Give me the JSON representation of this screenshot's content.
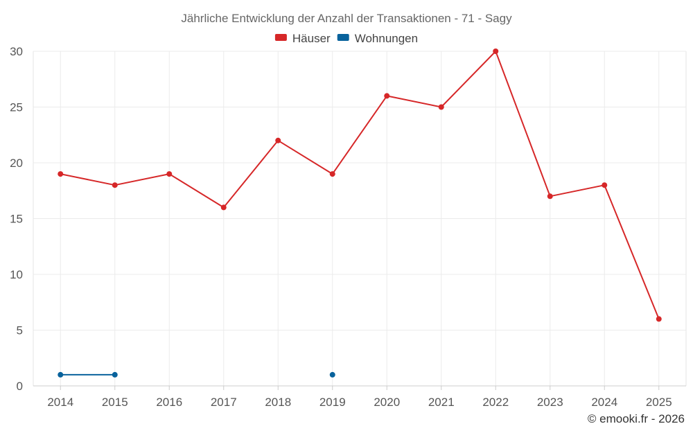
{
  "chart_data": {
    "type": "line",
    "title": "Jährliche Entwicklung der Anzahl der Transaktionen - 71 - Sagy",
    "categories": [
      "2014",
      "2015",
      "2016",
      "2017",
      "2018",
      "2019",
      "2020",
      "2021",
      "2022",
      "2023",
      "2024",
      "2025"
    ],
    "series": [
      {
        "name": "Häuser",
        "color": "#d62728",
        "values": [
          19,
          18,
          19,
          16,
          22,
          19,
          26,
          25,
          30,
          17,
          18,
          6
        ]
      },
      {
        "name": "Wohnungen",
        "color": "#08629c",
        "values": [
          1,
          1,
          null,
          null,
          null,
          1,
          null,
          null,
          null,
          null,
          null,
          null
        ]
      }
    ],
    "ylim": [
      0,
      30
    ],
    "yticks": [
      0,
      5,
      10,
      15,
      20,
      25,
      30
    ],
    "grid": true,
    "legend_position": "top-center",
    "xlabel": "",
    "ylabel": ""
  },
  "credit": "© emooki.fr - 2026"
}
